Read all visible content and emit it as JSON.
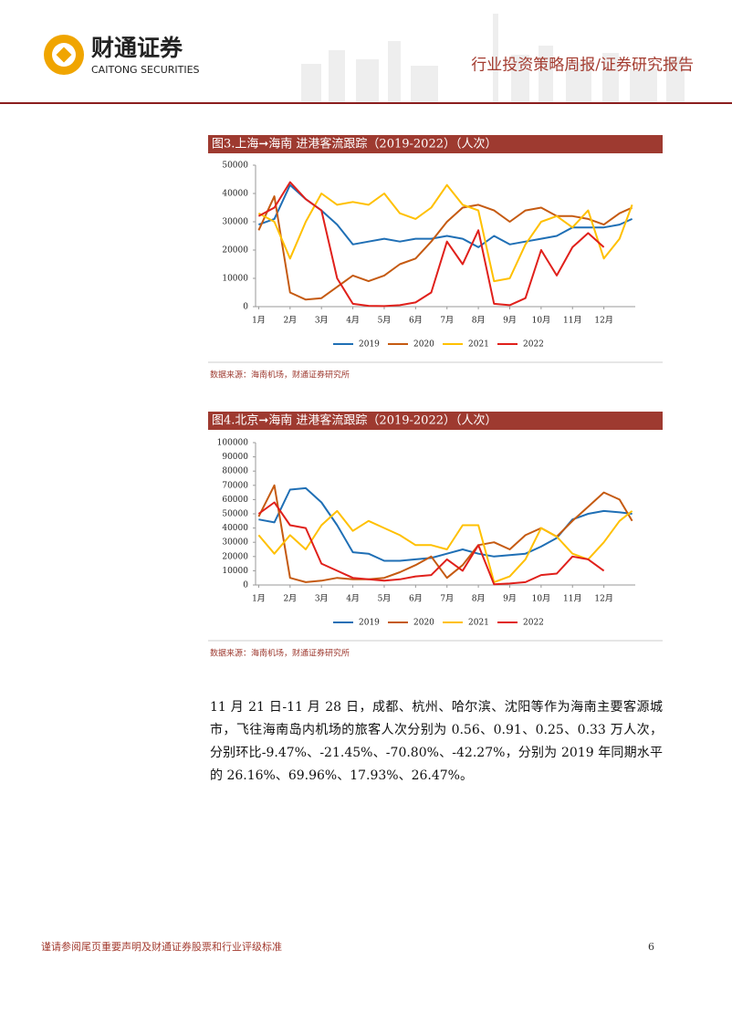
{
  "header": {
    "brand_cn": "财通证券",
    "brand_en": "CAITONG SECURITIES",
    "report_type": "行业投资策略周报/证券研究报告"
  },
  "chart_data": [
    {
      "type": "line",
      "title": "图3.上海➞海南 进港客流跟踪（2019-2022）（人次）",
      "source": "数据来源：海南机场，财通证券研究所",
      "x": [
        1,
        1.5,
        2,
        2.5,
        3,
        3.5,
        4,
        4.5,
        5,
        5.5,
        6,
        6.5,
        7,
        7.5,
        8,
        8.5,
        9,
        9.5,
        10,
        10.5,
        11,
        11.5,
        12,
        12.5,
        12.9
      ],
      "xlim": [
        0.9,
        13
      ],
      "xticks": [
        {
          "value": 1,
          "label": "1月"
        },
        {
          "value": 2,
          "label": "2月"
        },
        {
          "value": 3,
          "label": "3月"
        },
        {
          "value": 4,
          "label": "4月"
        },
        {
          "value": 5,
          "label": "5月"
        },
        {
          "value": 6,
          "label": "6月"
        },
        {
          "value": 7,
          "label": "7月"
        },
        {
          "value": 8,
          "label": "8月"
        },
        {
          "value": 9,
          "label": "9月"
        },
        {
          "value": 10,
          "label": "10月"
        },
        {
          "value": 11,
          "label": "11月"
        },
        {
          "value": 12,
          "label": "12月"
        }
      ],
      "ylim": [
        0,
        50000
      ],
      "yticks": [
        0,
        10000,
        20000,
        30000,
        40000,
        50000
      ],
      "series": [
        {
          "name": "2019",
          "color": "#1f6fb5",
          "values": [
            29000,
            31000,
            43000,
            38000,
            34000,
            29000,
            22000,
            23000,
            24000,
            23000,
            24000,
            24000,
            25000,
            24000,
            21000,
            25000,
            22000,
            23000,
            24000,
            25000,
            28000,
            28000,
            28000,
            29000,
            31000
          ]
        },
        {
          "name": "2020",
          "color": "#c55a11",
          "values": [
            27000,
            39000,
            5000,
            2500,
            3000,
            7000,
            11000,
            9000,
            11000,
            15000,
            17000,
            23000,
            30000,
            35000,
            36000,
            34000,
            30000,
            34000,
            35000,
            32000,
            32000,
            31000,
            29000,
            33000,
            35000
          ]
        },
        {
          "name": "2021",
          "color": "#ffc000",
          "values": [
            33000,
            30000,
            17000,
            30000,
            40000,
            36000,
            37000,
            36000,
            40000,
            33000,
            31000,
            35000,
            43000,
            36000,
            34000,
            9000,
            10000,
            22000,
            30000,
            32000,
            28000,
            34000,
            17000,
            24000,
            36000
          ]
        },
        {
          "name": "2022",
          "color": "#e0201b",
          "values": [
            32000,
            35000,
            44000,
            38000,
            34000,
            10000,
            1000,
            300,
            200,
            500,
            1500,
            5000,
            23000,
            15000,
            27000,
            1000,
            500,
            3000,
            20000,
            11000,
            21000,
            26000,
            21000,
            null,
            null
          ]
        }
      ]
    },
    {
      "type": "line",
      "title": "图4.北京➞海南 进港客流跟踪（2019-2022）（人次）",
      "source": "数据来源：海南机场，财通证券研究所",
      "x": [
        1,
        1.5,
        2,
        2.5,
        3,
        3.5,
        4,
        4.5,
        5,
        5.5,
        6,
        6.5,
        7,
        7.5,
        8,
        8.5,
        9,
        9.5,
        10,
        10.5,
        11,
        11.5,
        12,
        12.5,
        12.9
      ],
      "xlim": [
        0.9,
        13
      ],
      "xticks": [
        {
          "value": 1,
          "label": "1月"
        },
        {
          "value": 2,
          "label": "2月"
        },
        {
          "value": 3,
          "label": "3月"
        },
        {
          "value": 4,
          "label": "4月"
        },
        {
          "value": 5,
          "label": "5月"
        },
        {
          "value": 6,
          "label": "6月"
        },
        {
          "value": 7,
          "label": "7月"
        },
        {
          "value": 8,
          "label": "8月"
        },
        {
          "value": 9,
          "label": "9月"
        },
        {
          "value": 10,
          "label": "10月"
        },
        {
          "value": 11,
          "label": "11月"
        },
        {
          "value": 12,
          "label": "12月"
        }
      ],
      "ylim": [
        0,
        100000
      ],
      "yticks": [
        0,
        10000,
        20000,
        30000,
        40000,
        50000,
        60000,
        70000,
        80000,
        90000,
        100000
      ],
      "series": [
        {
          "name": "2019",
          "color": "#1f6fb5",
          "values": [
            46000,
            44000,
            67000,
            68000,
            58000,
            42000,
            23000,
            22000,
            17000,
            17000,
            18000,
            19000,
            22000,
            25000,
            22000,
            20000,
            21000,
            22000,
            27000,
            33000,
            46000,
            50000,
            52000,
            51000,
            50000
          ]
        },
        {
          "name": "2020",
          "color": "#c55a11",
          "values": [
            48000,
            70000,
            5000,
            2000,
            3000,
            5000,
            4000,
            4000,
            5000,
            9000,
            14000,
            20000,
            5000,
            14000,
            28000,
            30000,
            25000,
            35000,
            40000,
            34000,
            45000,
            55000,
            65000,
            60000,
            45000
          ]
        },
        {
          "name": "2021",
          "color": "#ffc000",
          "values": [
            35000,
            22000,
            35000,
            25000,
            42000,
            52000,
            38000,
            45000,
            40000,
            35000,
            28000,
            28000,
            25000,
            42000,
            42000,
            2000,
            6000,
            18000,
            40000,
            34000,
            22000,
            18000,
            30000,
            45000,
            52000
          ]
        },
        {
          "name": "2022",
          "color": "#e0201b",
          "values": [
            50000,
            58000,
            42000,
            40000,
            15000,
            10000,
            5000,
            4000,
            3000,
            4000,
            6000,
            7000,
            18000,
            10000,
            28000,
            500,
            1000,
            2000,
            7000,
            8000,
            20000,
            18000,
            10000,
            null,
            null
          ]
        }
      ]
    }
  ],
  "body": {
    "paragraph": "11 月 21 日-11 月 28 日，成都、杭州、哈尔滨、沈阳等作为海南主要客源城市，飞往海南岛内机场的旅客人次分别为 0.56、0.91、0.25、0.33 万人次，分别环比-9.47%、-21.45%、-70.80%、-42.27%，分别为 2019 年同期水平的 26.16%、69.96%、17.93%、26.47%。"
  },
  "footer": {
    "disclaimer": "谨请参阅尾页重要声明及财通证券股票和行业评级标准",
    "page_number": "6"
  }
}
